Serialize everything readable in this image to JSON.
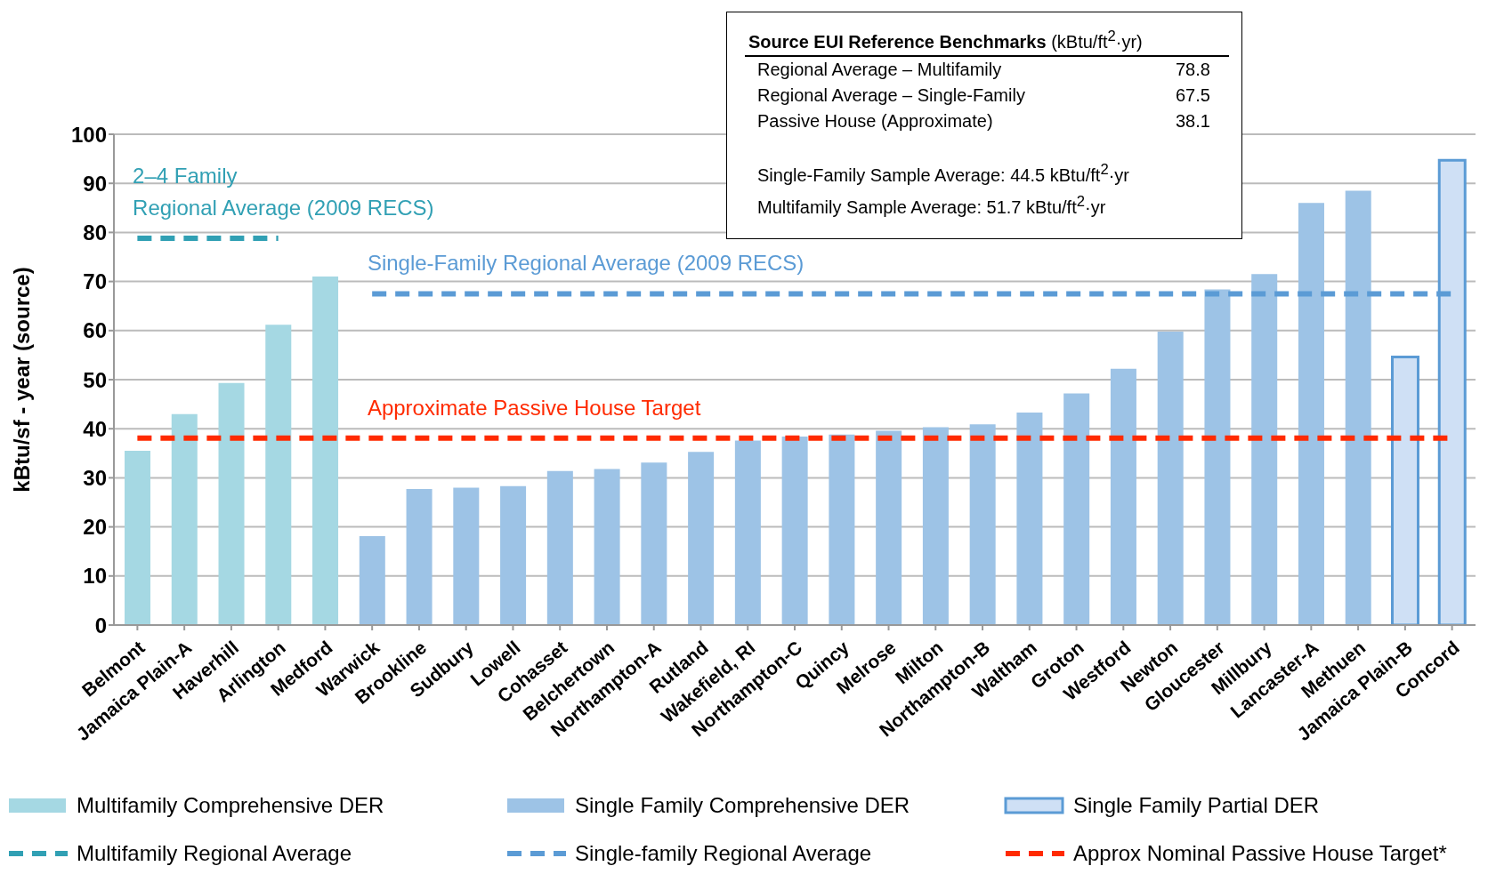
{
  "chart_data": {
    "type": "bar",
    "ylabel": "kBtu/sf - year (source)",
    "categories": [
      "Belmont",
      "Jamaica Plain-A",
      "Haverhill",
      "Arlington",
      "Medford",
      "Warwick",
      "Brookline",
      "Sudbury",
      "Lowell",
      "Cohasset",
      "Belchertown",
      "Northampton-A",
      "Rutland",
      "Wakefield, RI",
      "Northampton-C",
      "Quincy",
      "Melrose",
      "Milton",
      "Northampton-B",
      "Waltham",
      "Groton",
      "Westford",
      "Newton",
      "Gloucester",
      "Millbury",
      "Lancaster-A",
      "Methuen",
      "Jamaica Plain-B",
      "Concord"
    ],
    "stacked": true,
    "series": [
      {
        "name": "Multifamily Comprehensive DER",
        "color": "#a5d8e3",
        "values": [
          35.5,
          43,
          49.3,
          61.2,
          71,
          null,
          null,
          null,
          null,
          null,
          null,
          null,
          null,
          null,
          null,
          null,
          null,
          null,
          null,
          null,
          null,
          null,
          null,
          null,
          null,
          null,
          null,
          null,
          null
        ]
      },
      {
        "name": "Single Family Comprehensive DER",
        "color": "#9dc3e6",
        "values": [
          null,
          null,
          null,
          null,
          null,
          18.1,
          27.7,
          28,
          28.3,
          31.4,
          31.8,
          33.1,
          35.3,
          37.6,
          38.4,
          38.8,
          39.6,
          40.3,
          40.9,
          43.3,
          47.2,
          52.2,
          59.8,
          68.4,
          71.5,
          86,
          88.5,
          null,
          null
        ]
      },
      {
        "name": "Single Family Partial DER",
        "color": "#cfe0f5",
        "values": [
          null,
          null,
          null,
          null,
          null,
          null,
          null,
          null,
          null,
          null,
          null,
          null,
          null,
          null,
          null,
          null,
          null,
          null,
          null,
          null,
          null,
          null,
          null,
          null,
          null,
          null,
          null,
          54.6,
          94.7
        ]
      },
      {
        "name": "Multifamily Regional Average",
        "type": "line",
        "color": "#31a0b4",
        "line_style": "dashed",
        "values": [
          78.8,
          78.8,
          78.8,
          78.8,
          null,
          null,
          null,
          null,
          null,
          null,
          null,
          null,
          null,
          null,
          null,
          null,
          null,
          null,
          null,
          null,
          null,
          null,
          null,
          null,
          null,
          null,
          null,
          null,
          null
        ]
      },
      {
        "name": "Single-family Regional Average",
        "type": "line",
        "color": "#5b9bd5",
        "line_style": "dashed",
        "values": [
          null,
          null,
          null,
          null,
          null,
          67.5,
          67.5,
          67.5,
          67.5,
          67.5,
          67.5,
          67.5,
          67.5,
          67.5,
          67.5,
          67.5,
          67.5,
          67.5,
          67.5,
          67.5,
          67.5,
          67.5,
          67.5,
          67.5,
          67.5,
          67.5,
          67.5,
          67.5,
          67.5
        ]
      },
      {
        "name": "Approx Nominal Passive House Target*",
        "type": "line",
        "color": "#ff2a00",
        "line_style": "dashed",
        "values": [
          38.1,
          38.1,
          38.1,
          38.1,
          38.1,
          38.1,
          38.1,
          38.1,
          38.1,
          38.1,
          38.1,
          38.1,
          38.1,
          38.1,
          38.1,
          38.1,
          38.1,
          38.1,
          38.1,
          38.1,
          38.1,
          38.1,
          38.1,
          38.1,
          38.1,
          38.1,
          38.1,
          38.1,
          38.1
        ]
      }
    ],
    "ylim": [
      0,
      100
    ],
    "yticks": [
      0,
      10,
      20,
      30,
      40,
      50,
      60,
      70,
      80,
      90,
      100
    ],
    "grid": "y",
    "legend": "bottom",
    "marker": "none",
    "annotations": [
      "Source EUI Reference Benchmarks",
      "(kBtu/ft$^{2}$·yr)",
      "Regional Average – Multifamily",
      "78.8",
      "Regional Average – Single-Family",
      "67.5",
      "Passive House (Approximate)",
      "38.1",
      "Single-Family Sample Average: 44.5 kBtu/ft$^{2}$·yr",
      "Multifamily Sample Average: 51.7 kBtu/ft$^{2}$·yr",
      "2–4 Family\nRegional Average (2009 RECS)",
      "Single-Family Regional Average (2009 RECS)",
      "Approximate Passive House Target"
    ]
  }
}
